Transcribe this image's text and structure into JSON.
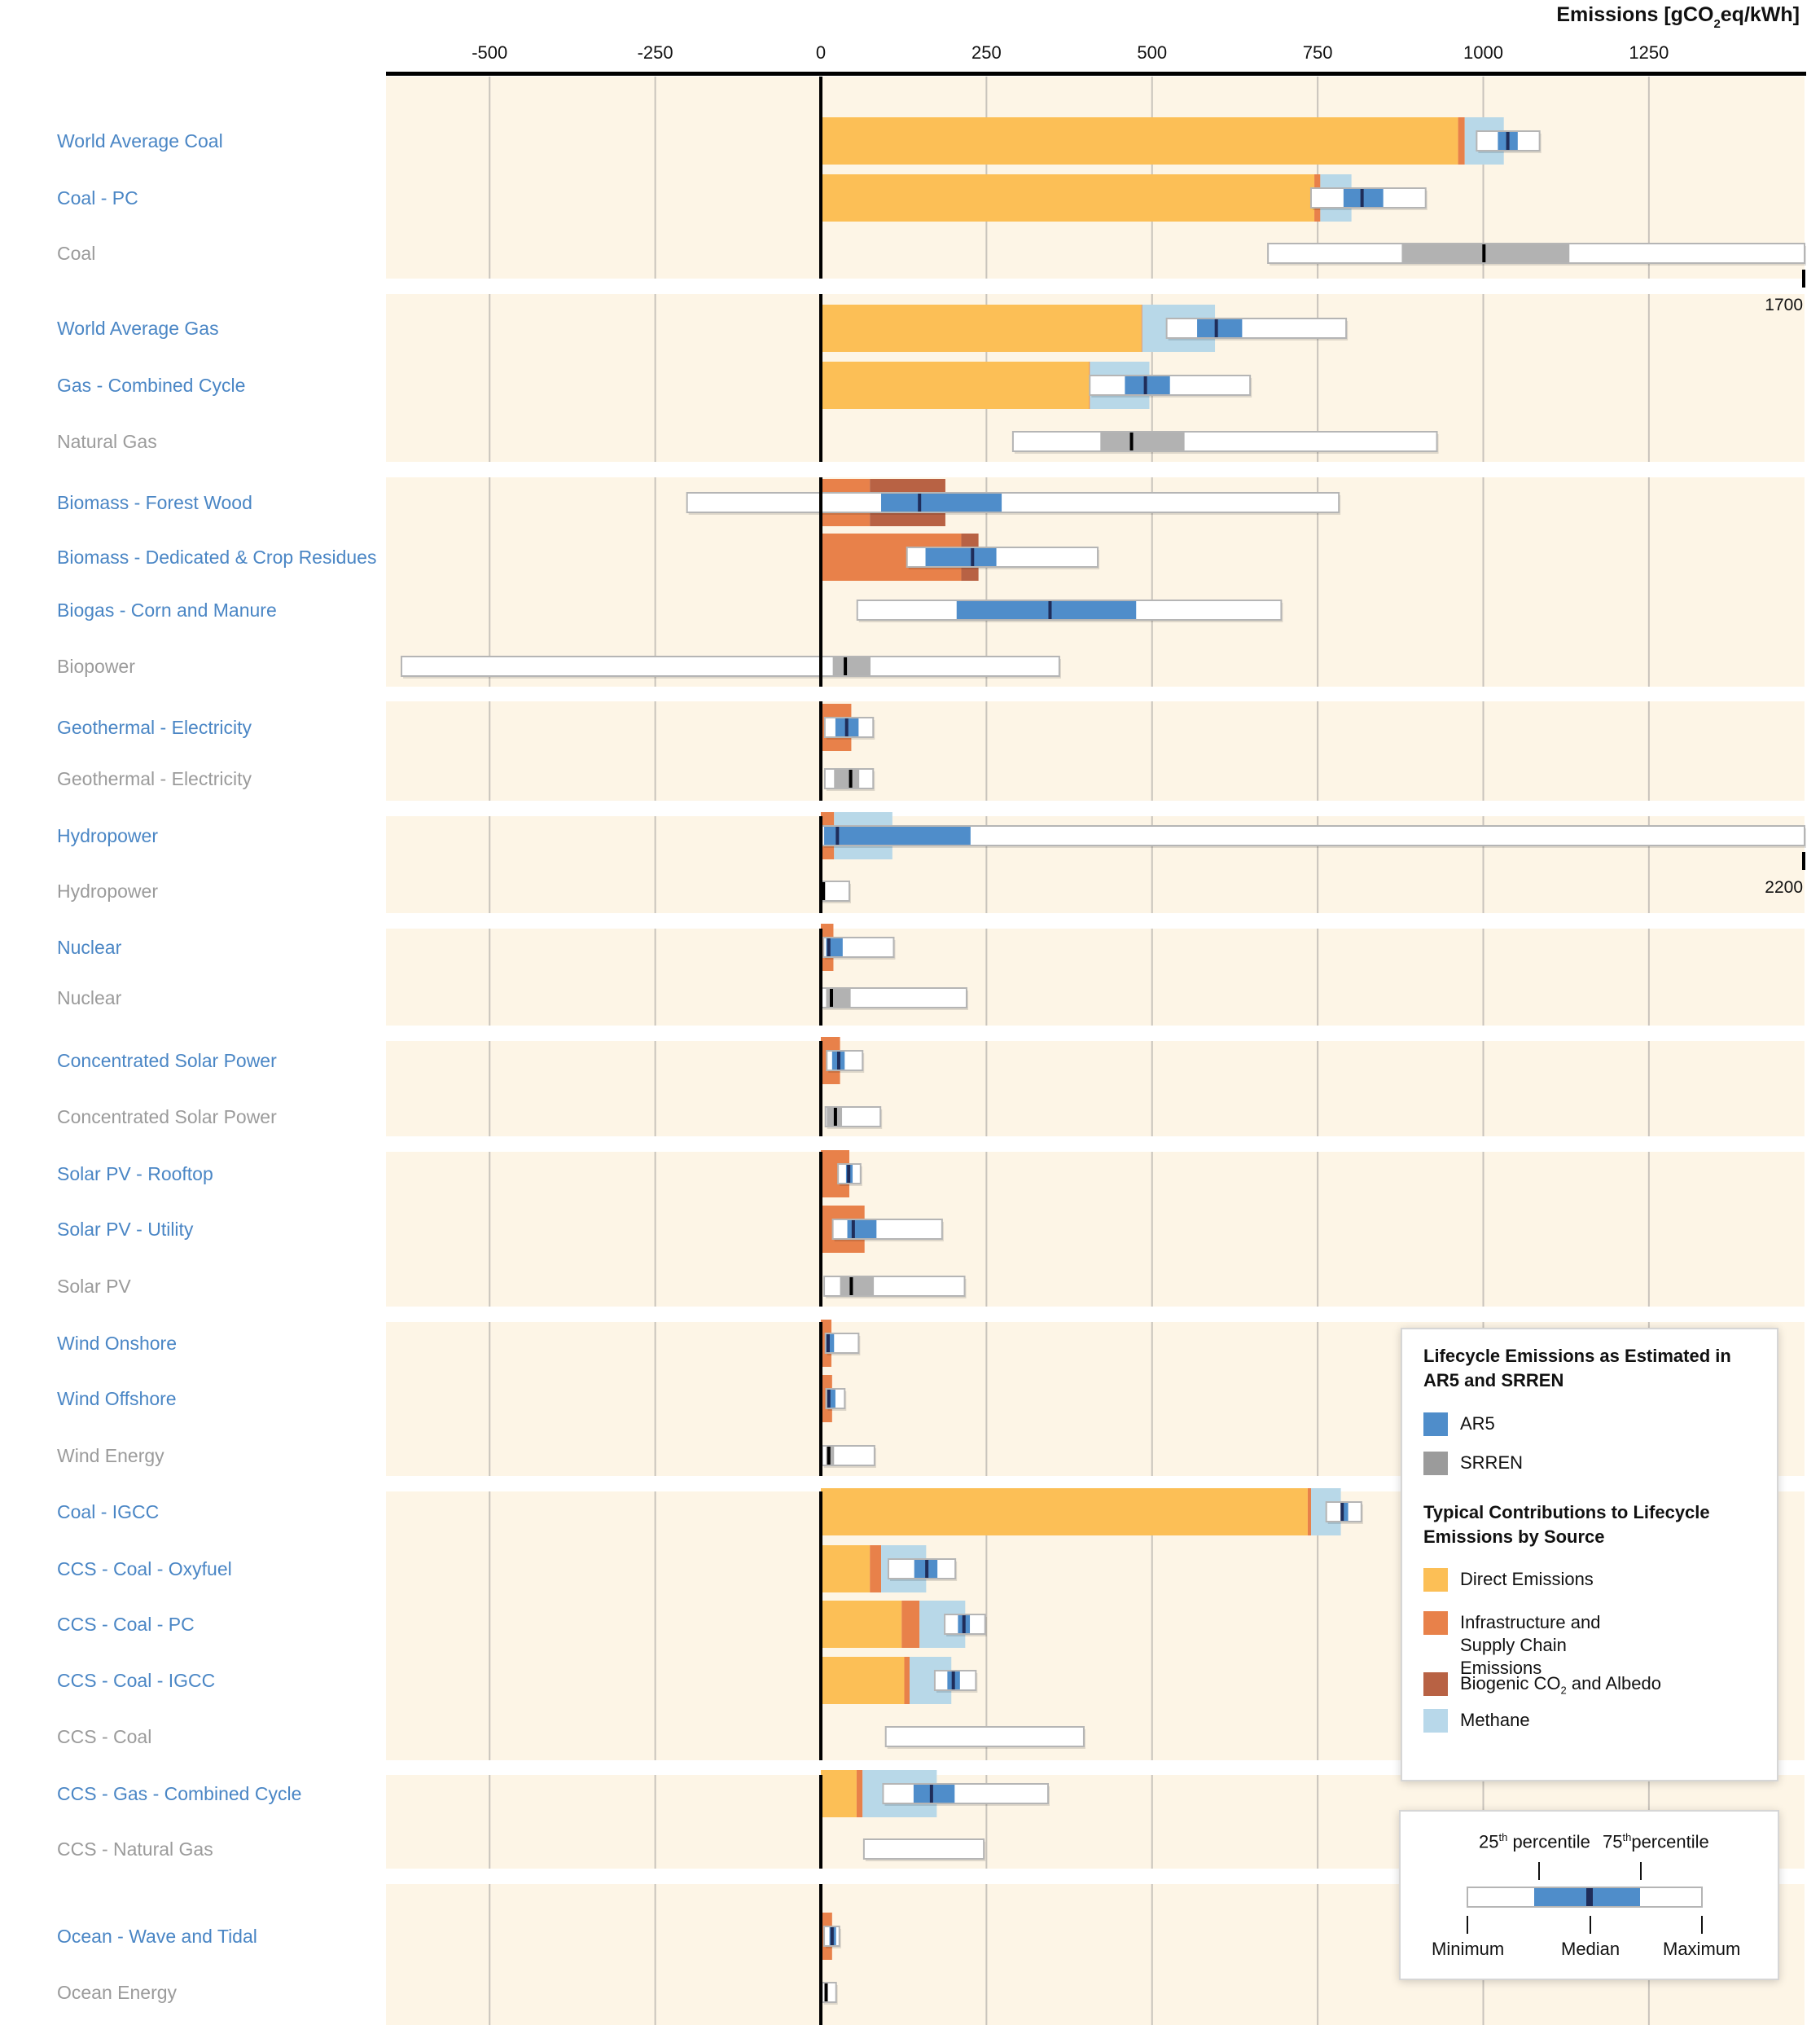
{
  "chart_data": {
    "type": "bar",
    "subtype": "horizontal stacked bars with box plots",
    "title": "",
    "xlabel": "Emissions [gCO2eq/kWh]",
    "xlabel_parts": {
      "pre": "Emissions [gCO",
      "sub": "2",
      "post": "eq/kWh]"
    },
    "ylabel": "",
    "xlim": [
      -650,
      1486
    ],
    "x_ticks": [
      -500,
      -250,
      0,
      250,
      500,
      750,
      1000,
      1250
    ],
    "x_tick_labels": [
      "-500",
      "-250",
      "0",
      "250",
      "500",
      "750",
      "1000",
      "1250"
    ],
    "grid": true,
    "colors": {
      "ar5": "#4f8dca",
      "ar5_median": "#1f2d5a",
      "srren": "#b2b2b2",
      "srren_median": "#000000",
      "direct": "#fcbf56",
      "infrastructure": "#e8814a",
      "biogenic": "#b86244",
      "methane": "#b8d8e8",
      "band": "#fdf5e6",
      "label_ar5": "#4a86c5",
      "label_srren": "#9b9b9b"
    },
    "groups": [
      {
        "rows": [
          {
            "label": "World Average Coal",
            "source": "AR5",
            "direct": 962,
            "infrastructure": 10,
            "biogenic": 0,
            "methane": 59,
            "min": 990,
            "q25": 1022,
            "median": 1037,
            "q75": 1052,
            "max": 1085
          },
          {
            "label": "Coal - PC",
            "source": "AR5",
            "direct": 745,
            "infrastructure": 9,
            "biogenic": 0,
            "methane": 47,
            "min": 740,
            "q25": 789,
            "median": 817,
            "q75": 849,
            "max": 913
          },
          {
            "label": "Coal",
            "source": "SRREN",
            "min": 675,
            "q25": 877,
            "median": 1001,
            "q75": 1130,
            "max": 1689,
            "overflow_label": "1700"
          }
        ]
      },
      {
        "rows": [
          {
            "label": "World Average Gas",
            "source": "AR5",
            "direct": 484,
            "infrastructure": 1,
            "biogenic": 0,
            "methane": 110,
            "min": 522,
            "q25": 568,
            "median": 597,
            "q75": 636,
            "max": 793
          },
          {
            "label": "Gas - Combined Cycle",
            "source": "AR5",
            "direct": 405,
            "infrastructure": 1,
            "biogenic": 0,
            "methane": 90,
            "min": 406,
            "q25": 459,
            "median": 490,
            "q75": 527,
            "max": 648
          },
          {
            "label": "Natural Gas",
            "source": "SRREN",
            "min": 290,
            "q25": 422,
            "median": 469,
            "q75": 549,
            "max": 930
          }
        ]
      },
      {
        "rows": [
          {
            "label": "Biomass - Forest Wood",
            "source": "AR5",
            "direct": 0,
            "infrastructure": 74,
            "biogenic": 114,
            "methane": 0,
            "min": -202,
            "q25": 91,
            "median": 149,
            "q75": 273,
            "max": 782
          },
          {
            "label": "Biomass - Dedicated & Crop Residues",
            "source": "AR5",
            "direct": 0,
            "infrastructure": 212,
            "biogenic": 26,
            "methane": 0,
            "min": 130,
            "q25": 158,
            "median": 229,
            "q75": 265,
            "max": 418
          },
          {
            "label": "Biogas - Corn and Manure",
            "source": "AR5",
            "min": 55,
            "q25": 205,
            "median": 346,
            "q75": 476,
            "max": 695
          },
          {
            "label": "Biopower",
            "source": "SRREN",
            "min": -633,
            "q25": 18,
            "median": 37,
            "q75": 75,
            "max": 360
          }
        ]
      },
      {
        "rows": [
          {
            "label": "Geothermal - Electricity",
            "source": "AR5",
            "direct": 0,
            "infrastructure": 46,
            "biogenic": 0,
            "methane": 0,
            "min": 6,
            "q25": 22,
            "median": 39,
            "q75": 57,
            "max": 79
          },
          {
            "label": "Geothermal - Electricity",
            "source": "SRREN",
            "min": 6,
            "q25": 20,
            "median": 45,
            "q75": 58,
            "max": 79
          }
        ]
      },
      {
        "rows": [
          {
            "label": "Hydropower",
            "source": "AR5",
            "direct": 0,
            "infrastructure": 20,
            "biogenic": 0,
            "methane": 88,
            "min": 2,
            "q25": 5,
            "median": 25,
            "q75": 226,
            "max": 2200,
            "overflow_label": "2200"
          },
          {
            "label": "Hydropower",
            "source": "SRREN",
            "min": 0,
            "q25": 1,
            "median": 4,
            "q75": 6,
            "max": 43
          }
        ]
      },
      {
        "rows": [
          {
            "label": "Nuclear",
            "source": "AR5",
            "direct": 0,
            "infrastructure": 19,
            "biogenic": 0,
            "methane": 0,
            "min": 4,
            "q25": 8,
            "median": 12,
            "q75": 33,
            "max": 110
          },
          {
            "label": "Nuclear",
            "source": "SRREN",
            "min": 1,
            "q25": 8,
            "median": 16,
            "q75": 45,
            "max": 220
          }
        ]
      },
      {
        "rows": [
          {
            "label": "Concentrated Solar Power",
            "source": "AR5",
            "direct": 0,
            "infrastructure": 29,
            "biogenic": 0,
            "methane": 0,
            "min": 9,
            "q25": 17,
            "median": 27,
            "q75": 36,
            "max": 63
          },
          {
            "label": "Concentrated Solar Power",
            "source": "SRREN",
            "min": 7,
            "q25": 9,
            "median": 22,
            "q75": 32,
            "max": 90
          }
        ]
      },
      {
        "rows": [
          {
            "label": "Solar PV - Rooftop",
            "source": "AR5",
            "direct": 0,
            "infrastructure": 43,
            "biogenic": 0,
            "methane": 0,
            "min": 26,
            "q25": 38,
            "median": 42,
            "q75": 48,
            "max": 60
          },
          {
            "label": "Solar PV - Utility",
            "source": "AR5",
            "direct": 0,
            "infrastructure": 66,
            "biogenic": 0,
            "methane": 0,
            "min": 18,
            "q25": 40,
            "median": 49,
            "q75": 84,
            "max": 183
          },
          {
            "label": "Solar PV",
            "source": "SRREN",
            "min": 5,
            "q25": 29,
            "median": 46,
            "q75": 80,
            "max": 217
          }
        ]
      },
      {
        "rows": [
          {
            "label": "Wind Onshore",
            "source": "AR5",
            "direct": 0,
            "infrastructure": 16,
            "biogenic": 0,
            "methane": 0,
            "min": 7,
            "q25": 8,
            "median": 11,
            "q75": 20,
            "max": 57
          },
          {
            "label": "Wind Offshore",
            "source": "AR5",
            "direct": 0,
            "infrastructure": 17,
            "biogenic": 0,
            "methane": 0,
            "min": 8,
            "q25": 10,
            "median": 12,
            "q75": 22,
            "max": 36
          },
          {
            "label": "Wind Energy",
            "source": "SRREN",
            "min": 2,
            "q25": 8,
            "median": 12,
            "q75": 20,
            "max": 81
          }
        ]
      },
      {
        "rows": [
          {
            "label": "Coal - IGCC",
            "source": "AR5",
            "direct": 735,
            "infrastructure": 5,
            "biogenic": 0,
            "methane": 45,
            "min": 763,
            "q25": 785,
            "median": 787,
            "q75": 796,
            "max": 816
          },
          {
            "label": "CCS - Coal - Oxyfuel",
            "source": "AR5",
            "direct": 74,
            "infrastructure": 17,
            "biogenic": 0,
            "methane": 68,
            "min": 102,
            "q25": 141,
            "median": 160,
            "q75": 176,
            "max": 203
          },
          {
            "label": "CCS -  Coal - PC",
            "source": "AR5",
            "direct": 122,
            "infrastructure": 27,
            "biogenic": 0,
            "methane": 69,
            "min": 187,
            "q25": 207,
            "median": 216,
            "q75": 225,
            "max": 248
          },
          {
            "label": "CCS - Coal - IGCC",
            "source": "AR5",
            "direct": 126,
            "infrastructure": 8,
            "biogenic": 0,
            "methane": 63,
            "min": 172,
            "q25": 191,
            "median": 200,
            "q75": 210,
            "max": 234
          },
          {
            "label": "CCS - Coal",
            "source": "SRREN",
            "min": 98,
            "max": 397
          }
        ]
      },
      {
        "rows": [
          {
            "label": "CCS - Gas - Combined Cycle",
            "source": "AR5",
            "direct": 54,
            "infrastructure": 9,
            "biogenic": 0,
            "methane": 112,
            "min": 94,
            "q25": 140,
            "median": 167,
            "q75": 202,
            "max": 343
          },
          {
            "label": "CCS - Natural Gas",
            "source": "SRREN",
            "min": 65,
            "max": 246
          }
        ]
      },
      {
        "rows": [
          {
            "label": "Ocean - Wave and Tidal",
            "source": "AR5",
            "direct": 0,
            "infrastructure": 17,
            "biogenic": 0,
            "methane": 0,
            "min": 5,
            "q25": 13,
            "median": 17,
            "q75": 23,
            "max": 28
          },
          {
            "label": "Ocean Energy",
            "source": "SRREN",
            "min": 2,
            "median": 8,
            "max": 23
          }
        ]
      }
    ],
    "legend": {
      "title1": "Lifecycle Emissions as Estimated in AR5 and SRREN",
      "items1": [
        {
          "key": "ar5",
          "label": "AR5"
        },
        {
          "key": "srren",
          "label": "SRREN"
        }
      ],
      "title2": "Typical Contributions to Lifecycle Emissions by Source",
      "items2": [
        {
          "key": "direct",
          "label": "Direct Emissions"
        },
        {
          "key": "infrastructure",
          "label": "Infrastructure and Supply Chain Emissions"
        },
        {
          "key": "biogenic",
          "label": "Biogenic CO2 and Albedo",
          "label_pre": "Biogenic CO",
          "label_sub": "2",
          "label_post": " and Albedo"
        },
        {
          "key": "methane",
          "label": "Methane"
        }
      ],
      "boxplot_key": {
        "p25": {
          "num": "25",
          "sup": "th",
          "text": " percentile"
        },
        "p75": {
          "num": "75",
          "sup": "th",
          "text": "percentile"
        },
        "min": "Minimum",
        "median": "Median",
        "max": "Maximum"
      }
    }
  }
}
